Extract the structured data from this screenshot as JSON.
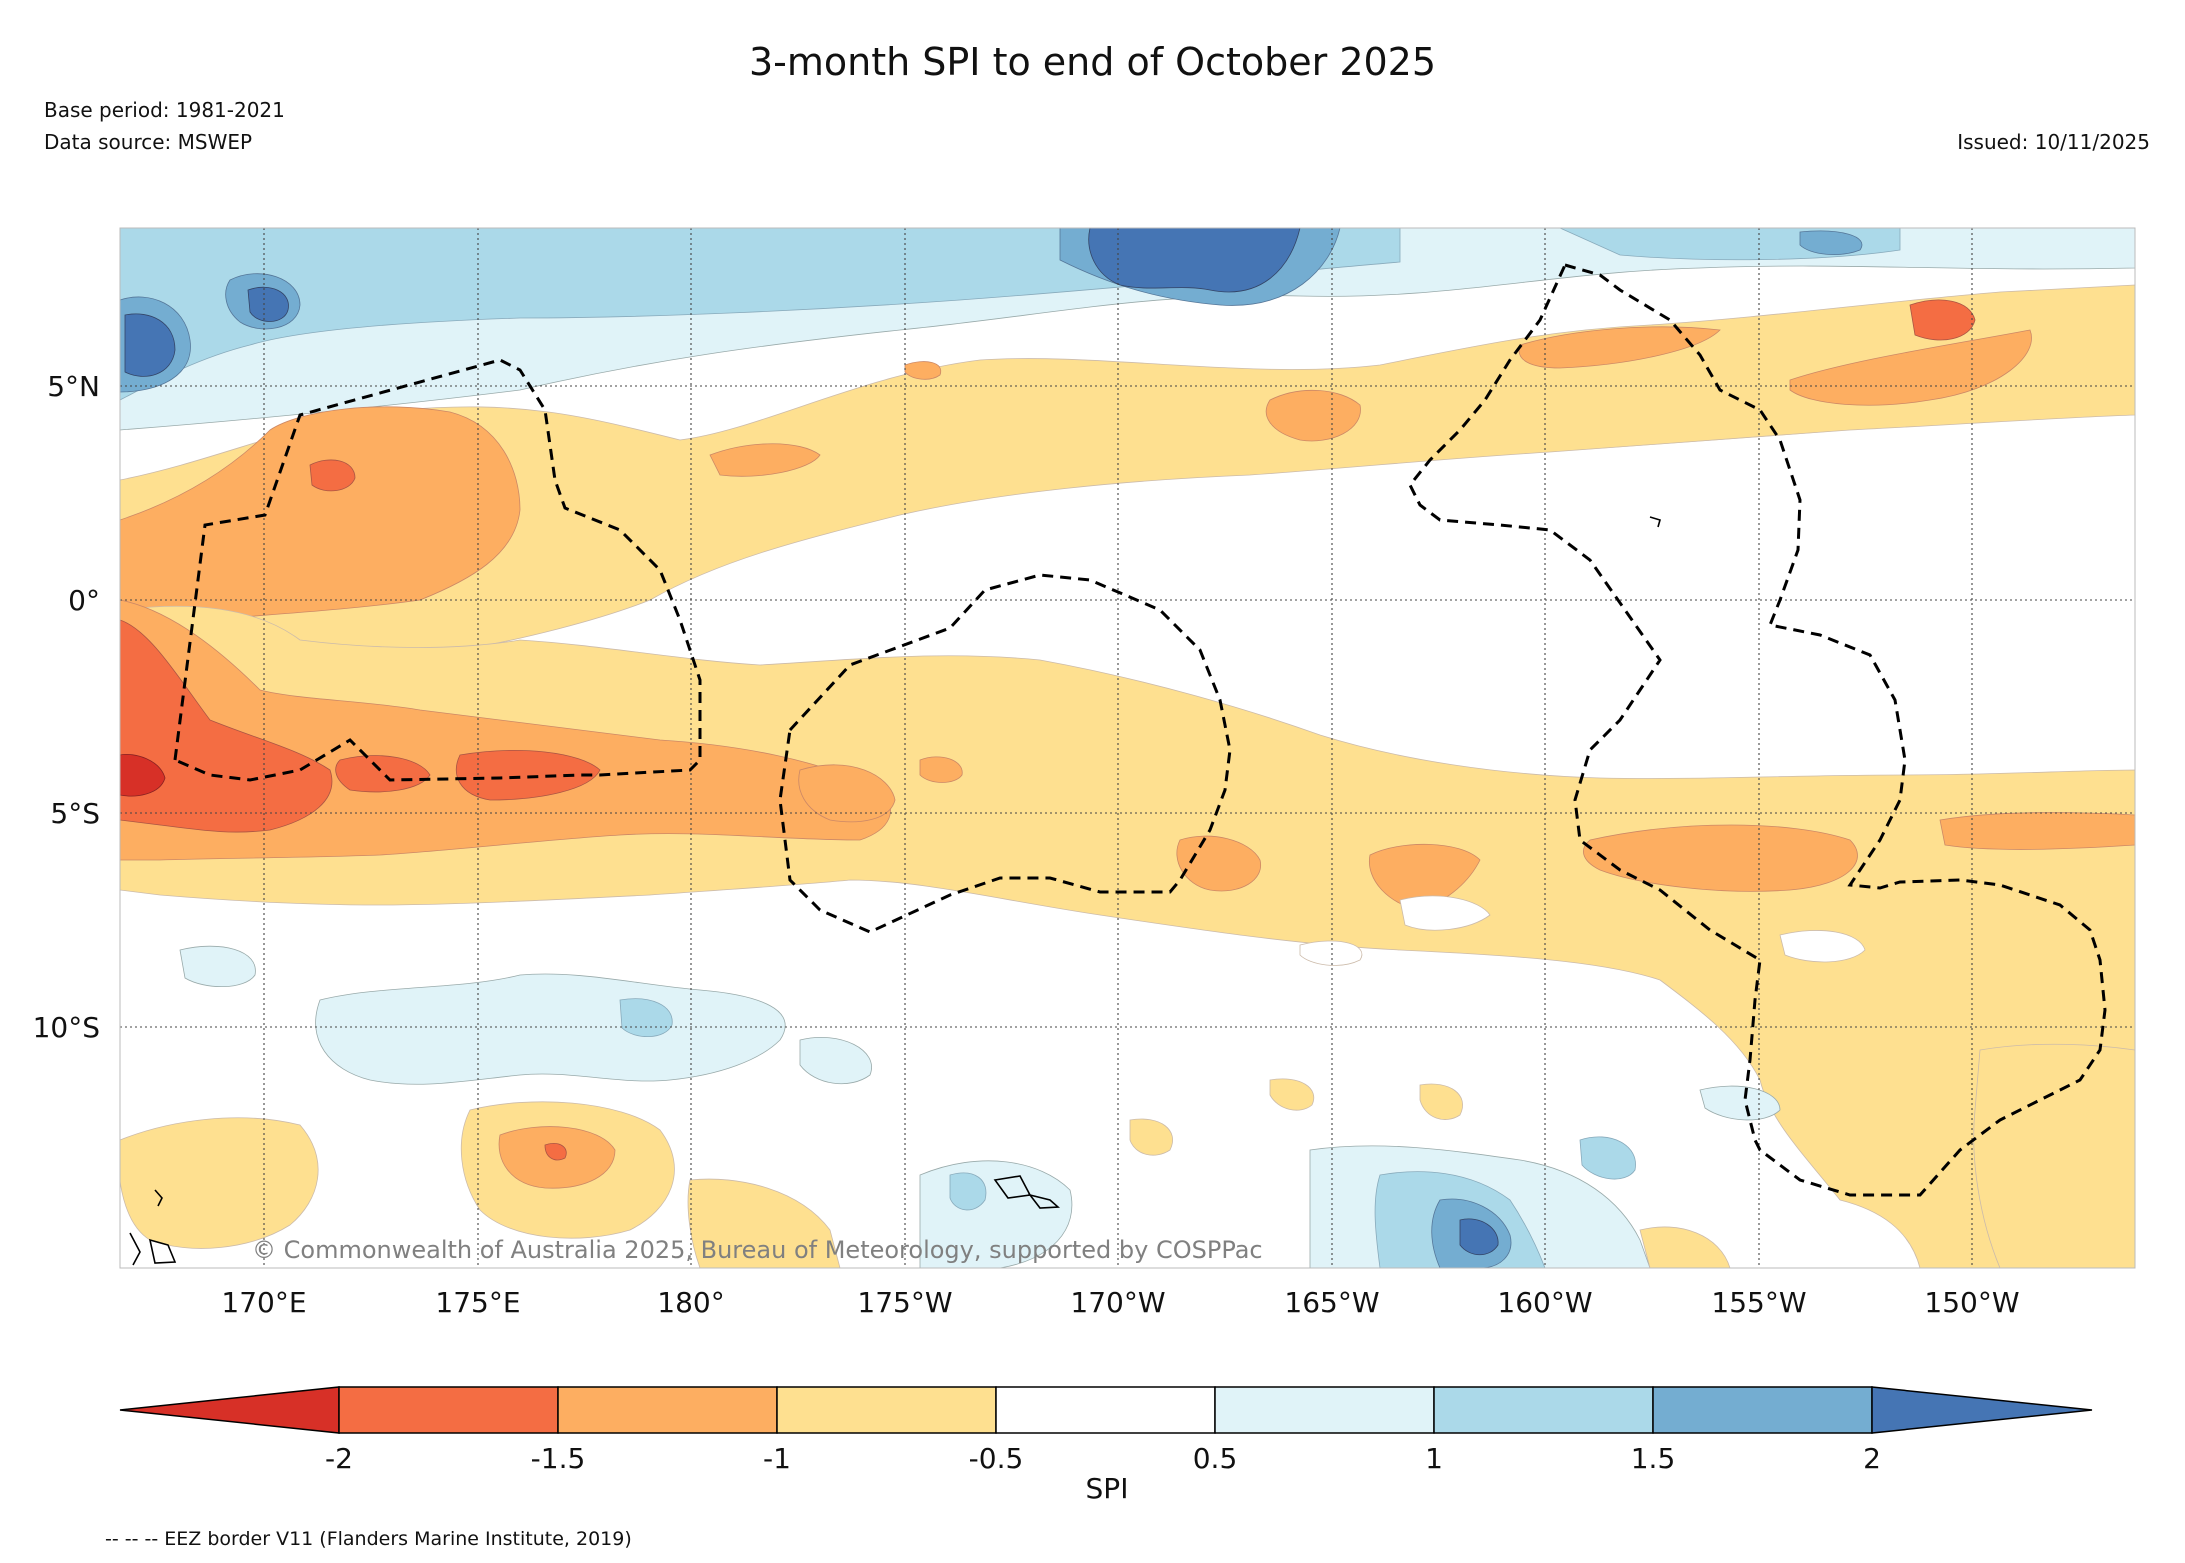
{
  "header": {
    "title": "3-month SPI to end of October 2025",
    "base_period": "Base period: 1981-2021",
    "data_source": "Data source: MSWEP",
    "issued": "Issued: 10/11/2025"
  },
  "map": {
    "lat_labels": [
      "5°N",
      "0°",
      "5°S",
      "10°S"
    ],
    "lon_labels": [
      "170°E",
      "175°E",
      "180°",
      "175°W",
      "170°W",
      "165°W",
      "160°W",
      "155°W",
      "150°W"
    ],
    "copyright": "© Commonwealth of Australia 2025, Bureau of Meteorology, supported by COSPPac"
  },
  "colorbar": {
    "label": "SPI",
    "ticks": [
      "-2",
      "-1.5",
      "-1",
      "-0.5",
      "0.5",
      "1",
      "1.5",
      "2"
    ],
    "colors": [
      "#d73027",
      "#f46d43",
      "#fdae61",
      "#fee090",
      "#ffffff",
      "#e0f3f8",
      "#abd9e9",
      "#74add1",
      "#4575b4"
    ]
  },
  "footnote": "-- -- -- EEZ border V11 (Flanders Marine Institute, 2019)"
}
